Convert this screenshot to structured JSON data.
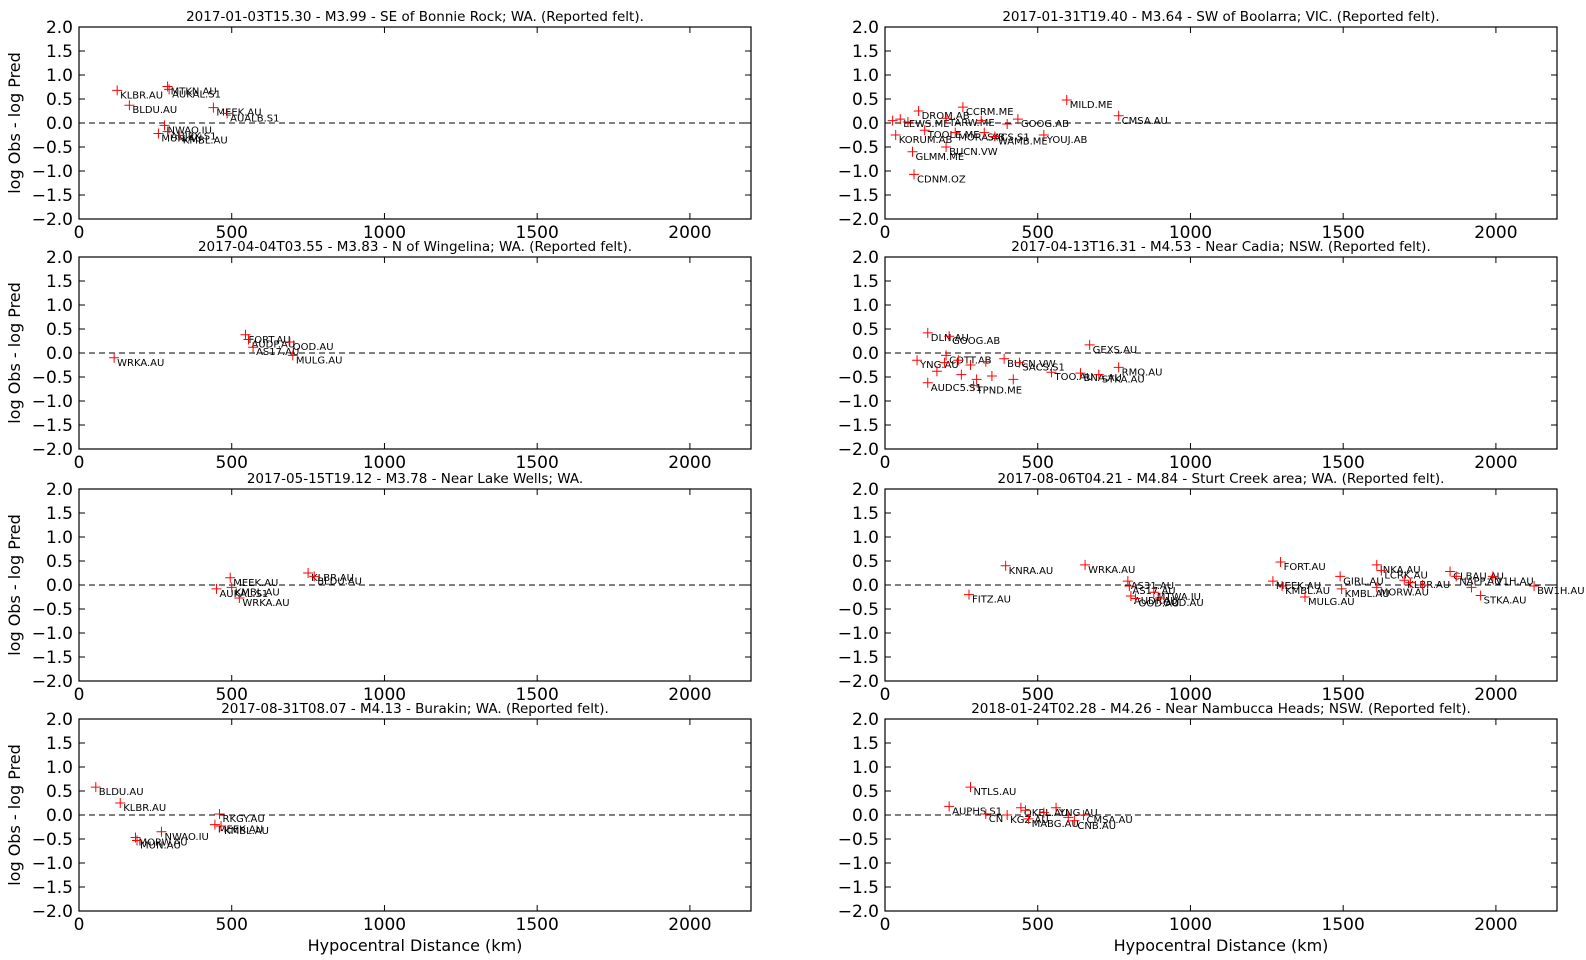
{
  "chart_data": [
    {
      "type": "scatter",
      "title": "2017-01-03T15.30 - M3.99 - SE of Bonnie Rock; WA. (Reported felt).",
      "xlabel": "",
      "ylabel": "log Obs - log Pred",
      "xlim": [
        0,
        2200
      ],
      "ylim": [
        -2.0,
        2.0
      ],
      "xticks": [
        0,
        500,
        1000,
        1500,
        2000
      ],
      "yticks": [
        2.0,
        1.5,
        1.0,
        0.5,
        0.0,
        -0.5,
        -1.0,
        -1.5,
        -2.0
      ],
      "grid": false,
      "marker_color": "#ff0000",
      "points": [
        {
          "x": 125,
          "y": 0.68,
          "label": "KLBR.AU"
        },
        {
          "x": 165,
          "y": 0.37,
          "label": "BLDU.AU"
        },
        {
          "x": 290,
          "y": 0.76,
          "label": "MTKN.AU"
        },
        {
          "x": 295,
          "y": 0.7,
          "label": "AUKAL.S1"
        },
        {
          "x": 440,
          "y": 0.32,
          "label": "MEEK.AU"
        },
        {
          "x": 485,
          "y": 0.2,
          "label": "AUALB.S1"
        },
        {
          "x": 280,
          "y": -0.05,
          "label": "NWAO.IU"
        },
        {
          "x": 260,
          "y": -0.22,
          "label": "MUN.AU"
        },
        {
          "x": 290,
          "y": -0.18,
          "label": "AUJPX.S1"
        },
        {
          "x": 330,
          "y": -0.26,
          "label": "KMBL.AU"
        }
      ]
    },
    {
      "type": "scatter",
      "title": "2017-01-31T19.40 - M3.64 - SW of Boolarra; VIC. (Reported felt).",
      "xlabel": "",
      "ylabel": "",
      "xlim": [
        0,
        2200
      ],
      "ylim": [
        -2.0,
        2.0
      ],
      "xticks": [
        0,
        500,
        1000,
        1500,
        2000
      ],
      "yticks": [
        2.0,
        1.5,
        1.0,
        0.5,
        0.0,
        -0.5,
        -1.0,
        -1.5,
        -2.0
      ],
      "grid": false,
      "marker_color": "#ff0000",
      "points": [
        {
          "x": 25,
          "y": 0.05,
          "label": ""
        },
        {
          "x": 50,
          "y": 0.08,
          "label": "LEWS.ME"
        },
        {
          "x": 75,
          "y": 0.02,
          "label": ""
        },
        {
          "x": 110,
          "y": 0.25,
          "label": "DROM.AB"
        },
        {
          "x": 255,
          "y": 0.33,
          "label": "CCRM.ME"
        },
        {
          "x": 200,
          "y": 0.1,
          "label": "TARW.ME"
        },
        {
          "x": 315,
          "y": 0.05,
          "label": ""
        },
        {
          "x": 400,
          "y": -0.02,
          "label": ""
        },
        {
          "x": 435,
          "y": 0.08,
          "label": "GOOG.AB"
        },
        {
          "x": 35,
          "y": -0.25,
          "label": "KORUM.AB"
        },
        {
          "x": 130,
          "y": -0.15,
          "label": "TOOLE.ME"
        },
        {
          "x": 230,
          "y": -0.2,
          "label": "MORA.AB"
        },
        {
          "x": 325,
          "y": -0.2,
          "label": "SACS.S1"
        },
        {
          "x": 360,
          "y": -0.28,
          "label": "WAMB.ME"
        },
        {
          "x": 520,
          "y": -0.25,
          "label": "YOUJ.AB"
        },
        {
          "x": 200,
          "y": -0.5,
          "label": "BUCN.VW"
        },
        {
          "x": 90,
          "y": -0.6,
          "label": "GLMM.ME"
        },
        {
          "x": 95,
          "y": -1.07,
          "label": "CDNM.OZ"
        },
        {
          "x": 595,
          "y": 0.48,
          "label": "MILD.ME"
        },
        {
          "x": 765,
          "y": 0.15,
          "label": "CMSA.AU"
        }
      ]
    },
    {
      "type": "scatter",
      "title": "2017-04-04T03.55 - M3.83 - N of Wingelina; WA. (Reported felt).",
      "xlabel": "",
      "ylabel": "log Obs - log Pred",
      "xlim": [
        0,
        2200
      ],
      "ylim": [
        -2.0,
        2.0
      ],
      "xticks": [
        0,
        500,
        1000,
        1500,
        2000
      ],
      "yticks": [
        2.0,
        1.5,
        1.0,
        0.5,
        0.0,
        -0.5,
        -1.0,
        -1.5,
        -2.0
      ],
      "grid": false,
      "marker_color": "#ff0000",
      "points": [
        {
          "x": 115,
          "y": -0.1,
          "label": "WRKA.AU"
        },
        {
          "x": 545,
          "y": 0.38,
          "label": "FORT.AU"
        },
        {
          "x": 555,
          "y": 0.28,
          "label": "AUDP.AU"
        },
        {
          "x": 690,
          "y": 0.23,
          "label": "OOD.AU"
        },
        {
          "x": 570,
          "y": 0.12,
          "label": "AS17.AU"
        },
        {
          "x": 700,
          "y": -0.05,
          "label": "MULG.AU"
        }
      ]
    },
    {
      "type": "scatter",
      "title": "2017-04-13T16.31 - M4.53 - Near Cadia; NSW. (Reported felt).",
      "xlabel": "",
      "ylabel": "",
      "xlim": [
        0,
        2200
      ],
      "ylim": [
        -2.0,
        2.0
      ],
      "xticks": [
        0,
        500,
        1000,
        1500,
        2000
      ],
      "yticks": [
        2.0,
        1.5,
        1.0,
        0.5,
        0.0,
        -0.5,
        -1.0,
        -1.5,
        -2.0
      ],
      "grid": false,
      "marker_color": "#ff0000",
      "points": [
        {
          "x": 140,
          "y": 0.42,
          "label": "DLN.AU"
        },
        {
          "x": 210,
          "y": 0.35,
          "label": "GOOG.AB"
        },
        {
          "x": 670,
          "y": 0.17,
          "label": "GEXS.AU"
        },
        {
          "x": 200,
          "y": -0.05,
          "label": "COTT.AB"
        },
        {
          "x": 105,
          "y": -0.15,
          "label": "YNG.AU"
        },
        {
          "x": 195,
          "y": -0.2,
          "label": ""
        },
        {
          "x": 240,
          "y": -0.15,
          "label": ""
        },
        {
          "x": 280,
          "y": -0.25,
          "label": ""
        },
        {
          "x": 330,
          "y": -0.18,
          "label": ""
        },
        {
          "x": 390,
          "y": -0.12,
          "label": "BUCN.VW"
        },
        {
          "x": 440,
          "y": -0.2,
          "label": "SACS.S1"
        },
        {
          "x": 170,
          "y": -0.38,
          "label": ""
        },
        {
          "x": 250,
          "y": -0.45,
          "label": ""
        },
        {
          "x": 300,
          "y": -0.55,
          "label": ""
        },
        {
          "x": 350,
          "y": -0.48,
          "label": ""
        },
        {
          "x": 420,
          "y": -0.55,
          "label": ""
        },
        {
          "x": 545,
          "y": -0.4,
          "label": "TOO.AU"
        },
        {
          "x": 640,
          "y": -0.42,
          "label": "BNA.AU"
        },
        {
          "x": 700,
          "y": -0.45,
          "label": "STKA.AU"
        },
        {
          "x": 765,
          "y": -0.3,
          "label": "RMQ.AU"
        },
        {
          "x": 140,
          "y": -0.62,
          "label": "AUDC5.S1"
        },
        {
          "x": 290,
          "y": -0.68,
          "label": "TPND.ME"
        }
      ]
    },
    {
      "type": "scatter",
      "title": "2017-05-15T19.12 - M3.78 - Near Lake Wells; WA.",
      "xlabel": "",
      "ylabel": "log Obs - log Pred",
      "xlim": [
        0,
        2200
      ],
      "ylim": [
        -2.0,
        2.0
      ],
      "xticks": [
        0,
        500,
        1000,
        1500,
        2000
      ],
      "yticks": [
        2.0,
        1.5,
        1.0,
        0.5,
        0.0,
        -0.5,
        -1.0,
        -1.5,
        -2.0
      ],
      "grid": false,
      "marker_color": "#ff0000",
      "points": [
        {
          "x": 495,
          "y": 0.15,
          "label": "MEEK.AU"
        },
        {
          "x": 450,
          "y": -0.08,
          "label": "AUKAL.S1"
        },
        {
          "x": 500,
          "y": -0.05,
          "label": "KMBL.AU"
        },
        {
          "x": 525,
          "y": -0.27,
          "label": "WRKA.AU"
        },
        {
          "x": 750,
          "y": 0.25,
          "label": "KLBR.AU"
        },
        {
          "x": 770,
          "y": 0.18,
          "label": "BLDU.AU"
        }
      ]
    },
    {
      "type": "scatter",
      "title": "2017-08-06T04.21 - M4.84 - Sturt Creek area; WA. (Reported felt).",
      "xlabel": "",
      "ylabel": "",
      "xlim": [
        0,
        2200
      ],
      "ylim": [
        -2.0,
        2.0
      ],
      "xticks": [
        0,
        500,
        1000,
        1500,
        2000
      ],
      "yticks": [
        2.0,
        1.5,
        1.0,
        0.5,
        0.0,
        -0.5,
        -1.0,
        -1.5,
        -2.0
      ],
      "grid": false,
      "marker_color": "#ff0000",
      "points": [
        {
          "x": 275,
          "y": -0.2,
          "label": "FITZ.AU"
        },
        {
          "x": 395,
          "y": 0.4,
          "label": "KNRA.AU"
        },
        {
          "x": 655,
          "y": 0.42,
          "label": "WRKA.AU"
        },
        {
          "x": 795,
          "y": 0.08,
          "label": "AS31.AU"
        },
        {
          "x": 800,
          "y": -0.02,
          "label": "AS17.AU"
        },
        {
          "x": 805,
          "y": -0.23,
          "label": "AUDP.AU"
        },
        {
          "x": 820,
          "y": -0.28,
          "label": "OOD.AU"
        },
        {
          "x": 880,
          "y": -0.15,
          "label": "MTWA.IU"
        },
        {
          "x": 900,
          "y": -0.27,
          "label": "OOD.AU"
        },
        {
          "x": 1295,
          "y": 0.48,
          "label": "FORT.AU"
        },
        {
          "x": 1270,
          "y": 0.08,
          "label": "MEEK.AU"
        },
        {
          "x": 1300,
          "y": -0.02,
          "label": "KMBL.AU"
        },
        {
          "x": 1375,
          "y": -0.25,
          "label": "MULG.AU"
        },
        {
          "x": 1490,
          "y": 0.18,
          "label": "GIRL.AU"
        },
        {
          "x": 1495,
          "y": -0.08,
          "label": "KMBL.AU"
        },
        {
          "x": 1610,
          "y": 0.42,
          "label": "INKA.AU"
        },
        {
          "x": 1625,
          "y": 0.3,
          "label": "LCRK.AU"
        },
        {
          "x": 1610,
          "y": -0.05,
          "label": "MORW.AU"
        },
        {
          "x": 1700,
          "y": 0.1,
          "label": "KLBR.AU"
        },
        {
          "x": 1720,
          "y": 0.05,
          "label": ""
        },
        {
          "x": 1760,
          "y": 0.0,
          "label": ""
        },
        {
          "x": 1850,
          "y": 0.28,
          "label": "CLBAU.AU"
        },
        {
          "x": 1870,
          "y": 0.18,
          "label": "NAPP.AU"
        },
        {
          "x": 1920,
          "y": -0.05,
          "label": ""
        },
        {
          "x": 1950,
          "y": -0.22,
          "label": "STKA.AU"
        },
        {
          "x": 1990,
          "y": 0.18,
          "label": "V1H.AU"
        },
        {
          "x": 2125,
          "y": -0.02,
          "label": "BW1H.AU"
        }
      ]
    },
    {
      "type": "scatter",
      "title": "2017-08-31T08.07 - M4.13 - Burakin; WA. (Reported felt).",
      "xlabel": "Hypocentral Distance (km)",
      "ylabel": "log Obs - log Pred",
      "xlim": [
        0,
        2200
      ],
      "ylim": [
        -2.0,
        2.0
      ],
      "xticks": [
        0,
        500,
        1000,
        1500,
        2000
      ],
      "yticks": [
        2.0,
        1.5,
        1.0,
        0.5,
        0.0,
        -0.5,
        -1.0,
        -1.5,
        -2.0
      ],
      "grid": false,
      "marker_color": "#ff0000",
      "points": [
        {
          "x": 55,
          "y": 0.58,
          "label": "BLDU.AU"
        },
        {
          "x": 135,
          "y": 0.25,
          "label": "KLBR.AU"
        },
        {
          "x": 460,
          "y": 0.02,
          "label": "RKGY.AU"
        },
        {
          "x": 445,
          "y": -0.2,
          "label": "MEEK.AU"
        },
        {
          "x": 465,
          "y": -0.23,
          "label": "KMBL.AU"
        },
        {
          "x": 270,
          "y": -0.35,
          "label": "NWAO.IU"
        },
        {
          "x": 185,
          "y": -0.47,
          "label": "MORW.AU"
        },
        {
          "x": 190,
          "y": -0.53,
          "label": "MUN.AU"
        }
      ]
    },
    {
      "type": "scatter",
      "title": "2018-01-24T02.28 - M4.26 - Near Nambucca Heads; NSW. (Reported felt).",
      "xlabel": "Hypocentral Distance (km)",
      "ylabel": "",
      "xlim": [
        0,
        2200
      ],
      "ylim": [
        -2.0,
        2.0
      ],
      "xticks": [
        0,
        500,
        1000,
        1500,
        2000
      ],
      "yticks": [
        2.0,
        1.5,
        1.0,
        0.5,
        0.0,
        -0.5,
        -1.0,
        -1.5,
        -2.0
      ],
      "grid": false,
      "marker_color": "#ff0000",
      "points": [
        {
          "x": 280,
          "y": 0.58,
          "label": "NTLS.AU"
        },
        {
          "x": 210,
          "y": 0.18,
          "label": "AUPHS.S1"
        },
        {
          "x": 330,
          "y": 0.02,
          "label": "CN"
        },
        {
          "x": 400,
          "y": 0.0,
          "label": "KGZ.AU"
        },
        {
          "x": 445,
          "y": 0.15,
          "label": "OKBL.AU"
        },
        {
          "x": 460,
          "y": 0.1,
          "label": ""
        },
        {
          "x": 520,
          "y": 0.05,
          "label": ""
        },
        {
          "x": 560,
          "y": 0.15,
          "label": "YNG.AU"
        },
        {
          "x": 470,
          "y": -0.08,
          "label": "MABG.AU"
        },
        {
          "x": 600,
          "y": -0.05,
          "label": ""
        },
        {
          "x": 620,
          "y": -0.12,
          "label": "CNB.AU"
        },
        {
          "x": 650,
          "y": 0.0,
          "label": "CMSA.AU"
        }
      ]
    }
  ]
}
